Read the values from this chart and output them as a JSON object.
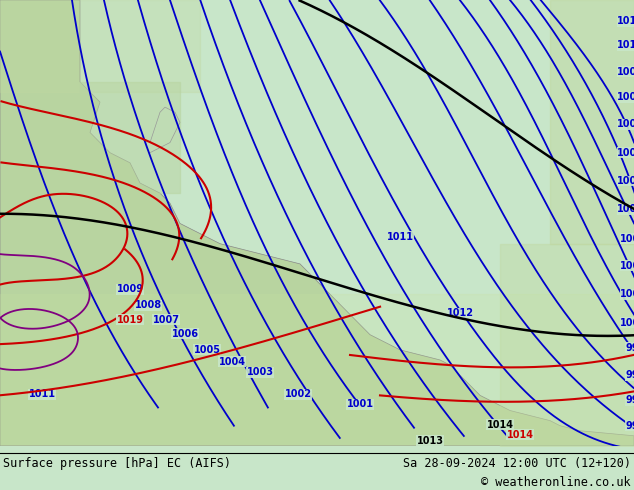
{
  "title_left": "Surface pressure [hPa] EC (AIFS)",
  "title_right": "Sa 28-09-2024 12:00 UTC (12+120)",
  "copyright": "© weatheronline.co.uk",
  "bg_color": "#c8e6c9",
  "land_color": "#d4eab0",
  "border_color": "#888888",
  "text_color": "#000000",
  "blue_contour_color": "#0000cc",
  "red_contour_color": "#cc0000",
  "black_contour_color": "#000000",
  "purple_contour_color": "#800080",
  "figsize": [
    6.34,
    4.9
  ],
  "dpi": 100
}
